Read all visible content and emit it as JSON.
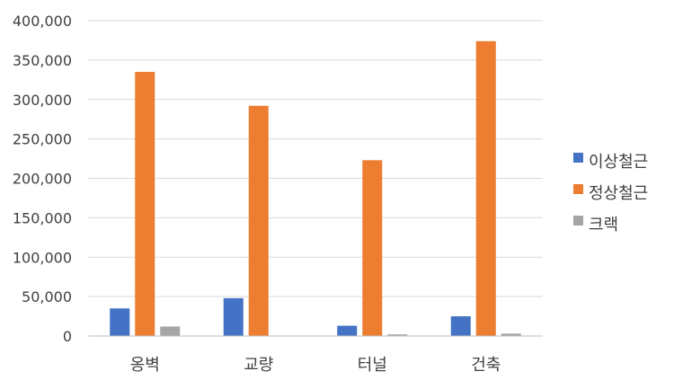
{
  "chart_data": {
    "type": "bar",
    "categories": [
      "옹벽",
      "교량",
      "터널",
      "건축"
    ],
    "series": [
      {
        "name": "이상철근",
        "color": "#4472C4",
        "values": [
          35000,
          48000,
          13000,
          25000
        ]
      },
      {
        "name": "정상철근",
        "color": "#ED7D31",
        "values": [
          335000,
          292000,
          223000,
          374000
        ]
      },
      {
        "name": "크랙",
        "color": "#A5A5A5",
        "values": [
          12000,
          0,
          2000,
          3000
        ]
      }
    ],
    "yticks": [
      "0",
      "50,000",
      "100,000",
      "150,000",
      "200,000",
      "250,000",
      "300,000",
      "350,000",
      "400,000"
    ],
    "ylim": [
      0,
      400000
    ],
    "grid": true,
    "legend_position": "right"
  }
}
